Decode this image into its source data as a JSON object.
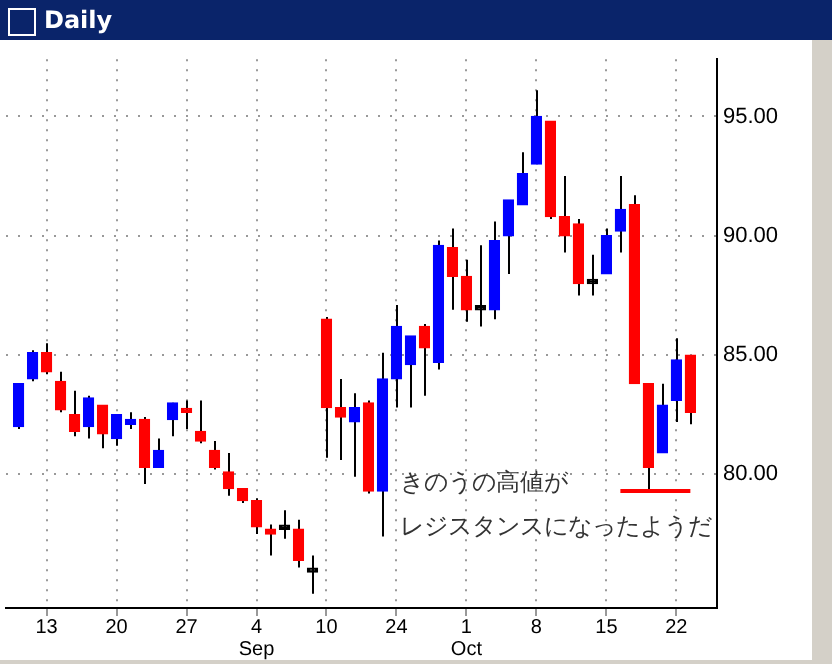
{
  "chart_data": {
    "type": "candlestick",
    "title": "Daily",
    "categories": [
      null,
      null,
      "13",
      null,
      null,
      null,
      null,
      "20",
      null,
      null,
      null,
      null,
      "27",
      null,
      null,
      null,
      null,
      "4\nSep",
      null,
      null,
      null,
      null,
      "10",
      null,
      null,
      null,
      null,
      "24",
      null,
      null,
      null,
      null,
      "1\nOct",
      null,
      null,
      null,
      null,
      "8",
      null,
      null,
      null,
      null,
      "15",
      null,
      null,
      null,
      null,
      "22",
      null
    ],
    "ohlc": [
      [
        82.0,
        83.8,
        81.9,
        83.8
      ],
      [
        84.0,
        85.2,
        83.9,
        85.1
      ],
      [
        85.1,
        85.5,
        84.2,
        84.3
      ],
      [
        83.9,
        84.3,
        82.6,
        82.7
      ],
      [
        82.5,
        83.5,
        81.6,
        81.8
      ],
      [
        82.0,
        83.3,
        81.5,
        83.2
      ],
      [
        82.9,
        82.9,
        81.1,
        81.7
      ],
      [
        81.5,
        82.5,
        81.2,
        82.5
      ],
      [
        82.1,
        82.6,
        81.9,
        82.3
      ],
      [
        82.3,
        82.4,
        79.6,
        80.3
      ],
      [
        80.3,
        81.5,
        80.3,
        81.0
      ],
      [
        82.3,
        83.0,
        81.6,
        83.0
      ],
      [
        82.7,
        83.1,
        81.9,
        82.6
      ],
      [
        81.8,
        83.1,
        81.3,
        81.4
      ],
      [
        81.0,
        81.4,
        80.2,
        80.3
      ],
      [
        80.1,
        80.9,
        79.1,
        79.4
      ],
      [
        79.4,
        79.4,
        78.8,
        78.9
      ],
      [
        78.9,
        79.0,
        77.5,
        77.8
      ],
      [
        77.7,
        77.9,
        76.6,
        77.5
      ],
      [
        77.7,
        78.5,
        77.3,
        77.7
      ],
      [
        77.7,
        78.1,
        76.1,
        76.4
      ],
      [
        75.9,
        76.6,
        75.0,
        75.9
      ],
      [
        86.5,
        86.6,
        80.7,
        82.8
      ],
      [
        82.8,
        84.0,
        80.6,
        82.4
      ],
      [
        82.2,
        83.4,
        79.9,
        82.8
      ],
      [
        83.0,
        83.1,
        79.2,
        79.3
      ],
      [
        79.3,
        85.1,
        77.4,
        84.0
      ],
      [
        84.0,
        87.1,
        82.8,
        86.2
      ],
      [
        84.6,
        85.8,
        82.8,
        85.8
      ],
      [
        86.2,
        86.3,
        83.3,
        85.3
      ],
      [
        84.7,
        89.8,
        84.4,
        89.6
      ],
      [
        89.5,
        90.3,
        86.9,
        88.3
      ],
      [
        88.3,
        89.0,
        86.4,
        86.9
      ],
      [
        86.9,
        89.6,
        86.2,
        86.9
      ],
      [
        86.9,
        90.6,
        86.5,
        89.8
      ],
      [
        90.0,
        91.5,
        88.4,
        91.5
      ],
      [
        91.3,
        93.5,
        91.3,
        92.6
      ],
      [
        93.0,
        96.1,
        93.0,
        95.0
      ],
      [
        94.8,
        94.8,
        90.7,
        90.8
      ],
      [
        90.8,
        92.5,
        89.3,
        90.0
      ],
      [
        90.5,
        90.7,
        87.5,
        88.0
      ],
      [
        88.0,
        89.2,
        87.5,
        88.0
      ],
      [
        88.4,
        90.3,
        88.4,
        90.0
      ],
      [
        90.2,
        92.5,
        89.3,
        91.1
      ],
      [
        91.3,
        91.7,
        83.8,
        83.8
      ],
      [
        83.8,
        83.8,
        79.3,
        80.3
      ],
      [
        80.9,
        83.8,
        80.9,
        82.9
      ],
      [
        83.1,
        85.7,
        82.2,
        84.8
      ],
      [
        85.0,
        85.0,
        82.1,
        82.6
      ]
    ],
    "colors": [
      "#0000ff",
      "#0000ff",
      "#ff0000",
      "#ff0000",
      "#ff0000",
      "#0000ff",
      "#ff0000",
      "#0000ff",
      "#0000ff",
      "#ff0000",
      "#0000ff",
      "#0000ff",
      "#ff0000",
      "#ff0000",
      "#ff0000",
      "#ff0000",
      "#ff0000",
      "#ff0000",
      "#ff0000",
      "#000000",
      "#ff0000",
      "#000000",
      "#ff0000",
      "#ff0000",
      "#0000ff",
      "#ff0000",
      "#0000ff",
      "#0000ff",
      "#0000ff",
      "#ff0000",
      "#0000ff",
      "#ff0000",
      "#ff0000",
      "#000000",
      "#0000ff",
      "#0000ff",
      "#0000ff",
      "#0000ff",
      "#ff0000",
      "#ff0000",
      "#ff0000",
      "#000000",
      "#0000ff",
      "#0000ff",
      "#ff0000",
      "#ff0000",
      "#0000ff",
      "#0000ff",
      "#ff0000"
    ],
    "series": [
      {
        "type": "line",
        "color": "#ff0000",
        "values": [
          null,
          null,
          null,
          null,
          null,
          null,
          null,
          null,
          null,
          null,
          null,
          null,
          null,
          null,
          null,
          null,
          null,
          null,
          null,
          null,
          null,
          null,
          null,
          null,
          null,
          null,
          null,
          null,
          null,
          null,
          null,
          null,
          null,
          null,
          null,
          null,
          null,
          null,
          null,
          null,
          null,
          null,
          null,
          79.3,
          79.3,
          79.3,
          79.3,
          79.3,
          79.3
        ]
      }
    ],
    "ylim": [
      74.4,
      97.4
    ],
    "yticks": [
      {
        "value": 80,
        "label": "80.00"
      },
      {
        "value": 85,
        "label": "85.00"
      },
      {
        "value": 90,
        "label": "90.00"
      },
      {
        "value": 95,
        "label": "95.00"
      }
    ],
    "grid": true,
    "legend": false,
    "marker": "none",
    "annotations": [
      "きのうの高値が",
      "レジスタンスになったようだ"
    ]
  }
}
